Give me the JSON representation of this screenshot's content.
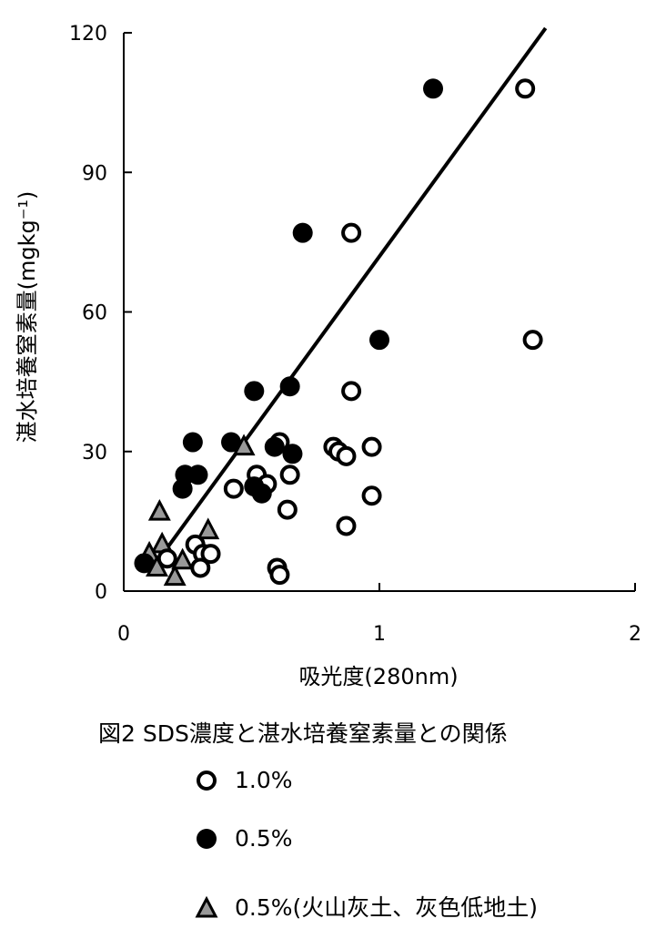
{
  "chart_data": {
    "type": "scatter",
    "xlabel": "吸光度(280nm)",
    "ylabel": "湛水培養窒素量(mgkg⁻¹)",
    "xlim": [
      0,
      2
    ],
    "ylim": [
      0,
      120
    ],
    "xticks": [
      0,
      1,
      2
    ],
    "xtick_labels": [
      "0",
      "1",
      "2"
    ],
    "yticks": [
      0,
      30,
      60,
      90,
      120
    ],
    "ytick_labels": [
      "0",
      "30",
      "60",
      "90",
      "120"
    ],
    "grid": false,
    "legend_position": "bottom",
    "series": [
      {
        "name": "1.0%",
        "marker": "open-circle",
        "color": "#000000",
        "points": [
          [
            1.57,
            108
          ],
          [
            0.89,
            77
          ],
          [
            1.6,
            54
          ],
          [
            0.89,
            43
          ],
          [
            0.61,
            32
          ],
          [
            0.82,
            31
          ],
          [
            0.97,
            31
          ],
          [
            0.84,
            30
          ],
          [
            0.87,
            29
          ],
          [
            0.52,
            25
          ],
          [
            0.65,
            25
          ],
          [
            0.56,
            23
          ],
          [
            0.43,
            22
          ],
          [
            0.97,
            20.5
          ],
          [
            0.64,
            17.5
          ],
          [
            0.87,
            14
          ],
          [
            0.28,
            10
          ],
          [
            0.31,
            8
          ],
          [
            0.34,
            8
          ],
          [
            0.17,
            7
          ],
          [
            0.3,
            5
          ],
          [
            0.6,
            5
          ],
          [
            0.61,
            3.5
          ]
        ]
      },
      {
        "name": "0.5%",
        "marker": "filled-circle",
        "color": "#000000",
        "points": [
          [
            1.21,
            108
          ],
          [
            0.7,
            77
          ],
          [
            1.0,
            54
          ],
          [
            0.51,
            43
          ],
          [
            0.65,
            44
          ],
          [
            0.27,
            32
          ],
          [
            0.42,
            32
          ],
          [
            0.59,
            31
          ],
          [
            0.66,
            29.5
          ],
          [
            0.24,
            25
          ],
          [
            0.29,
            25
          ],
          [
            0.23,
            22
          ],
          [
            0.51,
            22.5
          ],
          [
            0.54,
            21
          ],
          [
            0.08,
            6
          ]
        ]
      },
      {
        "name": "0.5%(火山灰土、灰色低地土)",
        "marker": "triangle",
        "color": "#999999",
        "points": [
          [
            0.47,
            31
          ],
          [
            0.14,
            17
          ],
          [
            0.33,
            13
          ],
          [
            0.15,
            10
          ],
          [
            0.1,
            8
          ],
          [
            0.23,
            6.5
          ],
          [
            0.13,
            5
          ],
          [
            0.2,
            3
          ]
        ]
      }
    ],
    "trendline": {
      "from": [
        0.1,
        4
      ],
      "to": [
        1.65,
        121
      ]
    }
  },
  "caption": "図2  SDS濃度と湛水培養窒素量との関係",
  "legend": [
    "1.0%",
    "0.5%",
    "0.5%(火山灰土、灰色低地土)"
  ]
}
